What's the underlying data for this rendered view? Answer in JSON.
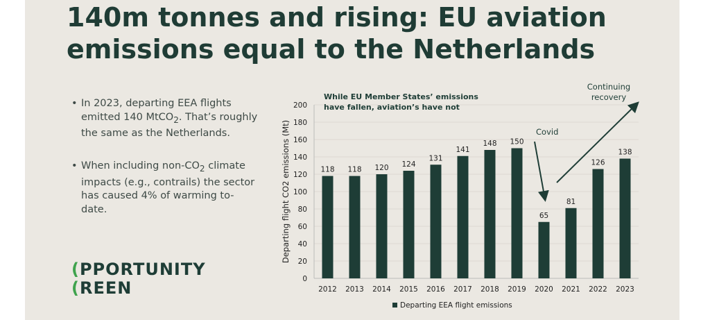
{
  "title_lines": [
    "140m tonnes and rising: EU aviation",
    "emissions equal to the Netherlands"
  ],
  "bullets": [
    {
      "pre": "In 2023, departing EEA flights emitted 140 MtCO",
      "sub": "2",
      "post": ". That’s roughly the same as the Netherlands."
    },
    {
      "pre": "When including non-CO",
      "sub": "2",
      "post": " climate impacts (e.g., contrails) the sector has caused 4% of warming to-date."
    }
  ],
  "logo": {
    "line1": "OPPORTUNITY",
    "line2": "GREEN"
  },
  "colors": {
    "bar": "#1e3d36",
    "accent": "#3fa34d",
    "background": "#ebe8e2"
  },
  "chart_data": {
    "type": "bar",
    "title": "While EU Member States’ emissions have fallen, aviation’s have not",
    "title_lines": [
      "While EU Member States’ emissions",
      "have fallen, aviation’s have not"
    ],
    "ylabel": "Departing flight CO2 emissions (Mt)",
    "ylim": [
      0,
      200
    ],
    "yticks": [
      0,
      20,
      40,
      60,
      80,
      100,
      120,
      140,
      160,
      180,
      200
    ],
    "grid": true,
    "legend": "bottom",
    "categories": [
      "2012",
      "2013",
      "2014",
      "2015",
      "2016",
      "2017",
      "2018",
      "2019",
      "2020",
      "2021",
      "2022",
      "2023"
    ],
    "series": [
      {
        "name": "Departing EEA flight emissions",
        "values": [
          118,
          118,
          120,
          124,
          131,
          141,
          148,
          150,
          65,
          81,
          126,
          138
        ]
      }
    ],
    "annotations": [
      "Covid",
      "Continuing recovery"
    ]
  }
}
